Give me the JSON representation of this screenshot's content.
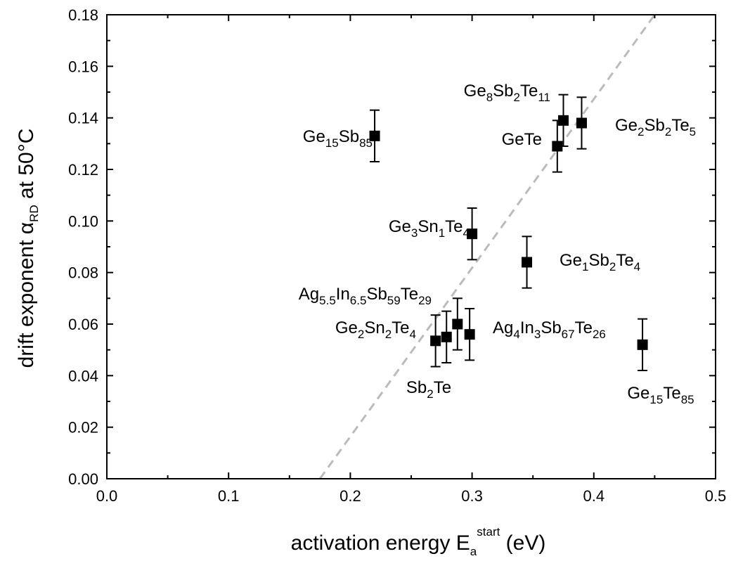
{
  "chart_data": {
    "type": "scatter",
    "title": "",
    "xlabel": {
      "main": "activation energy E",
      "sub": "a",
      "sup": "start",
      "unit": " (eV)"
    },
    "ylabel": {
      "main": "drift exponent α",
      "sub": "RD",
      "tail": " at 50°C"
    },
    "xlim": [
      0.0,
      0.5
    ],
    "ylim": [
      0.0,
      0.18
    ],
    "x_ticks": [
      "0.0",
      "0.1",
      "0.2",
      "0.3",
      "0.4",
      "0.5"
    ],
    "y_ticks": [
      "0.00",
      "0.02",
      "0.04",
      "0.06",
      "0.08",
      "0.10",
      "0.12",
      "0.14",
      "0.16",
      "0.18"
    ],
    "grid": false,
    "legend": "none",
    "marker": "square",
    "marker_color": "#000000",
    "points": [
      {
        "x": 0.22,
        "y": 0.133,
        "err": 0.01,
        "label_parts": [
          [
            "Ge",
            ""
          ],
          [
            "15",
            "sub"
          ],
          [
            "Sb",
            ""
          ],
          [
            "85",
            "sub"
          ]
        ]
      },
      {
        "x": 0.375,
        "y": 0.139,
        "err": 0.01,
        "label_parts": [
          [
            "Ge",
            ""
          ],
          [
            "8",
            "sub"
          ],
          [
            "Sb",
            ""
          ],
          [
            "2",
            "sub"
          ],
          [
            "Te",
            ""
          ],
          [
            "11",
            "sub"
          ]
        ]
      },
      {
        "x": 0.37,
        "y": 0.129,
        "err": 0.01,
        "label_parts": [
          [
            "GeTe",
            ""
          ]
        ]
      },
      {
        "x": 0.39,
        "y": 0.138,
        "err": 0.01,
        "label_parts": [
          [
            "Ge",
            ""
          ],
          [
            "2",
            "sub"
          ],
          [
            "Sb",
            ""
          ],
          [
            "2",
            "sub"
          ],
          [
            "Te",
            ""
          ],
          [
            "5",
            "sub"
          ]
        ]
      },
      {
        "x": 0.3,
        "y": 0.095,
        "err": 0.01,
        "label_parts": [
          [
            "Ge",
            ""
          ],
          [
            "3",
            "sub"
          ],
          [
            "Sn",
            ""
          ],
          [
            "1",
            "sub"
          ],
          [
            "Te",
            ""
          ],
          [
            "4",
            "sub"
          ]
        ]
      },
      {
        "x": 0.345,
        "y": 0.084,
        "err": 0.01,
        "label_parts": [
          [
            "Ge",
            ""
          ],
          [
            "1",
            "sub"
          ],
          [
            "Sb",
            ""
          ],
          [
            "2",
            "sub"
          ],
          [
            "Te",
            ""
          ],
          [
            "4",
            "sub"
          ]
        ]
      },
      {
        "x": 0.288,
        "y": 0.06,
        "err": 0.01,
        "label_parts": [
          [
            "Ag",
            ""
          ],
          [
            "5.5",
            "sub"
          ],
          [
            "In",
            ""
          ],
          [
            "6.5",
            "sub"
          ],
          [
            "Sb",
            ""
          ],
          [
            "59",
            "sub"
          ],
          [
            "Te",
            ""
          ],
          [
            "29",
            "sub"
          ]
        ]
      },
      {
        "x": 0.279,
        "y": 0.055,
        "err": 0.01,
        "label_parts": [
          [
            "Ge",
            ""
          ],
          [
            "2",
            "sub"
          ],
          [
            "Sn",
            ""
          ],
          [
            "2",
            "sub"
          ],
          [
            "Te",
            ""
          ],
          [
            "4",
            "sub"
          ]
        ]
      },
      {
        "x": 0.298,
        "y": 0.056,
        "err": 0.01,
        "label_parts": [
          [
            "Ag",
            ""
          ],
          [
            "4",
            "sub"
          ],
          [
            "In",
            ""
          ],
          [
            "3",
            "sub"
          ],
          [
            "Sb",
            ""
          ],
          [
            "67",
            "sub"
          ],
          [
            "Te",
            ""
          ],
          [
            "26",
            "sub"
          ]
        ]
      },
      {
        "x": 0.27,
        "y": 0.0535,
        "err": 0.01,
        "label_parts": [
          [
            "Sb",
            ""
          ],
          [
            "2",
            "sub"
          ],
          [
            "Te",
            ""
          ]
        ]
      },
      {
        "x": 0.44,
        "y": 0.052,
        "err": 0.01,
        "label_parts": [
          [
            "Ge",
            ""
          ],
          [
            "15",
            "sub"
          ],
          [
            "Te",
            ""
          ],
          [
            "85",
            "sub"
          ]
        ]
      }
    ],
    "trend_line": {
      "style": "dashed",
      "color": "#bbbbbb",
      "points": [
        [
          0.175,
          0.0
        ],
        [
          0.45,
          0.18
        ]
      ]
    }
  }
}
